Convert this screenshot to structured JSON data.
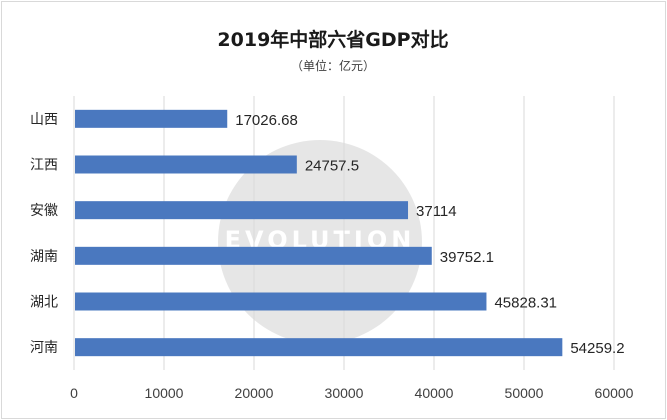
{
  "chart_data": {
    "type": "bar",
    "orientation": "horizontal",
    "title": "2019年中部六省GDP对比",
    "subtitle": "（单位：亿元）",
    "categories": [
      "山西",
      "江西",
      "安徽",
      "湖南",
      "湖北",
      "河南"
    ],
    "values": [
      17026.68,
      24757.5,
      37114,
      39752.1,
      45828.31,
      54259.2
    ],
    "value_labels": [
      "17026.68",
      "24757.5",
      "37114",
      "39752.1",
      "45828.31",
      "54259.2"
    ],
    "xlim": [
      0,
      60000
    ],
    "x_ticks": [
      "0",
      "10000",
      "20000",
      "30000",
      "40000",
      "50000",
      "60000"
    ],
    "grid": "vertical",
    "bar_color": "#4a78bf",
    "grid_color": "#d9d9d9",
    "legend": "none"
  },
  "watermark": {
    "text": "EVOLUTION",
    "color": "#c8c8c8"
  }
}
